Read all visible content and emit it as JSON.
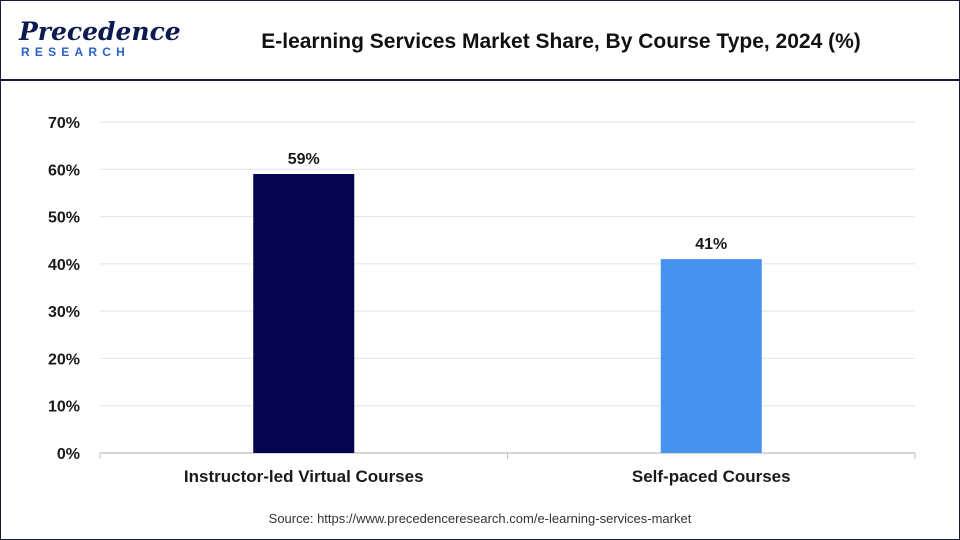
{
  "header": {
    "logo_top": "Precedence",
    "logo_bottom": "RESEARCH",
    "title": "E-learning Services Market Share, By Course Type, 2024 (%)"
  },
  "footer": {
    "source": "Source: https://www.precedenceresearch.com/e-learning-services-market"
  },
  "colors": {
    "series": [
      "#05054f",
      "#4791ef"
    ],
    "grid": "#e3e3e3",
    "axis": "#bfbfbf"
  },
  "chart_data": {
    "type": "bar",
    "title": "E-learning Services Market Share, By Course Type, 2024 (%)",
    "categories": [
      "Instructor-led Virtual Courses",
      "Self-paced Courses"
    ],
    "values": [
      59,
      41
    ],
    "data_labels": [
      "59%",
      "41%"
    ],
    "ylim": [
      0,
      70
    ],
    "yticks": [
      0,
      10,
      20,
      30,
      40,
      50,
      60,
      70
    ],
    "ytick_labels": [
      "0%",
      "10%",
      "20%",
      "30%",
      "40%",
      "50%",
      "60%",
      "70%"
    ],
    "xlabel": "",
    "ylabel": "",
    "grid": true,
    "legend": "none"
  }
}
